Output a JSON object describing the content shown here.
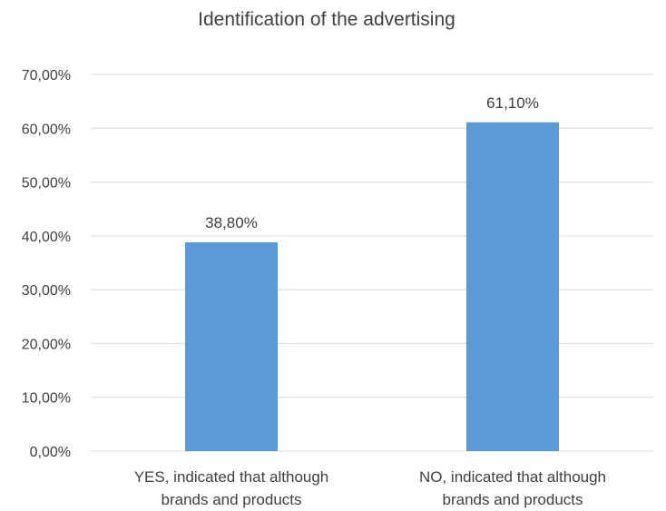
{
  "chart_data": {
    "type": "bar",
    "title": "Identification of the advertising",
    "categories": [
      [
        "YES, indicated that although",
        "brands and products"
      ],
      [
        "NO, indicated that although",
        "brands and products"
      ]
    ],
    "values": [
      38.8,
      61.1
    ],
    "value_labels": [
      "38,80%",
      "61,10%"
    ],
    "ylim": [
      0,
      70
    ],
    "yticks": [
      0,
      10,
      20,
      30,
      40,
      50,
      60,
      70
    ],
    "ytick_labels": [
      "0,00%",
      "10,00%",
      "20,00%",
      "30,00%",
      "40,00%",
      "50,00%",
      "60,00%",
      "70,00%"
    ],
    "grid": true,
    "legend": "none",
    "bar_color": "#5b9bd5"
  }
}
